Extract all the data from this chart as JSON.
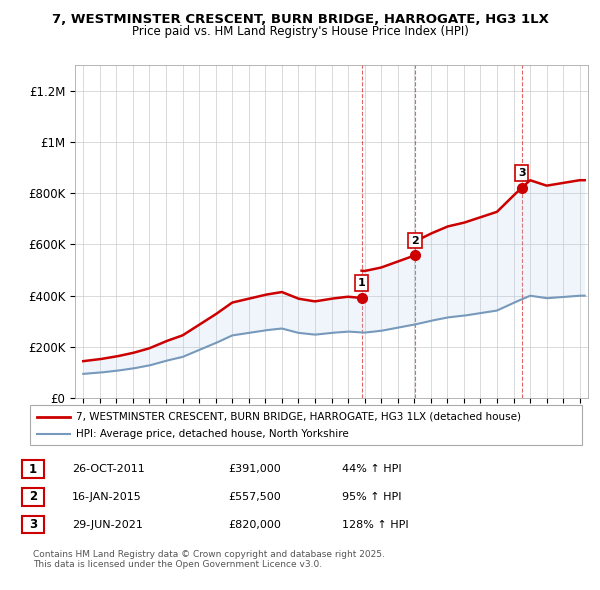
{
  "title1": "7, WESTMINSTER CRESCENT, BURN BRIDGE, HARROGATE, HG3 1LX",
  "title2": "Price paid vs. HM Land Registry's House Price Index (HPI)",
  "xlim_start": 1994.5,
  "xlim_end": 2025.5,
  "ylim": [
    0,
    1300000
  ],
  "sale_dates": [
    2011.82,
    2015.04,
    2021.49
  ],
  "sale_prices": [
    391000,
    557500,
    820000
  ],
  "sale_labels": [
    "1",
    "2",
    "3"
  ],
  "legend_entries": [
    "7, WESTMINSTER CRESCENT, BURN BRIDGE, HARROGATE, HG3 1LX (detached house)",
    "HPI: Average price, detached house, North Yorkshire"
  ],
  "table_entries": [
    {
      "num": "1",
      "date": "26-OCT-2011",
      "price": "£391,000",
      "pct": "44% ↑ HPI"
    },
    {
      "num": "2",
      "date": "16-JAN-2015",
      "price": "£557,500",
      "pct": "95% ↑ HPI"
    },
    {
      "num": "3",
      "date": "29-JUN-2021",
      "price": "£820,000",
      "pct": "128% ↑ HPI"
    }
  ],
  "footnote": "Contains HM Land Registry data © Crown copyright and database right 2025.\nThis data is licensed under the Open Government Licence v3.0.",
  "line_color_red": "#cc0000",
  "line_color_blue": "#7799bb",
  "bg_color": "#ffffff",
  "grid_color": "#cccccc",
  "years_hpi": [
    1995,
    1996,
    1997,
    1998,
    1999,
    2000,
    2001,
    2002,
    2003,
    2004,
    2005,
    2006,
    2007,
    2008,
    2009,
    2010,
    2011,
    2012,
    2013,
    2014,
    2015,
    2016,
    2017,
    2018,
    2019,
    2020,
    2021,
    2022,
    2023,
    2024,
    2025
  ],
  "hpi_values": [
    95000,
    100000,
    107000,
    116000,
    128000,
    146000,
    161000,
    188000,
    215000,
    245000,
    255000,
    265000,
    272000,
    255000,
    248000,
    255000,
    260000,
    256000,
    263000,
    275000,
    287000,
    302000,
    315000,
    322000,
    332000,
    342000,
    372000,
    400000,
    390000,
    395000,
    400000
  ]
}
